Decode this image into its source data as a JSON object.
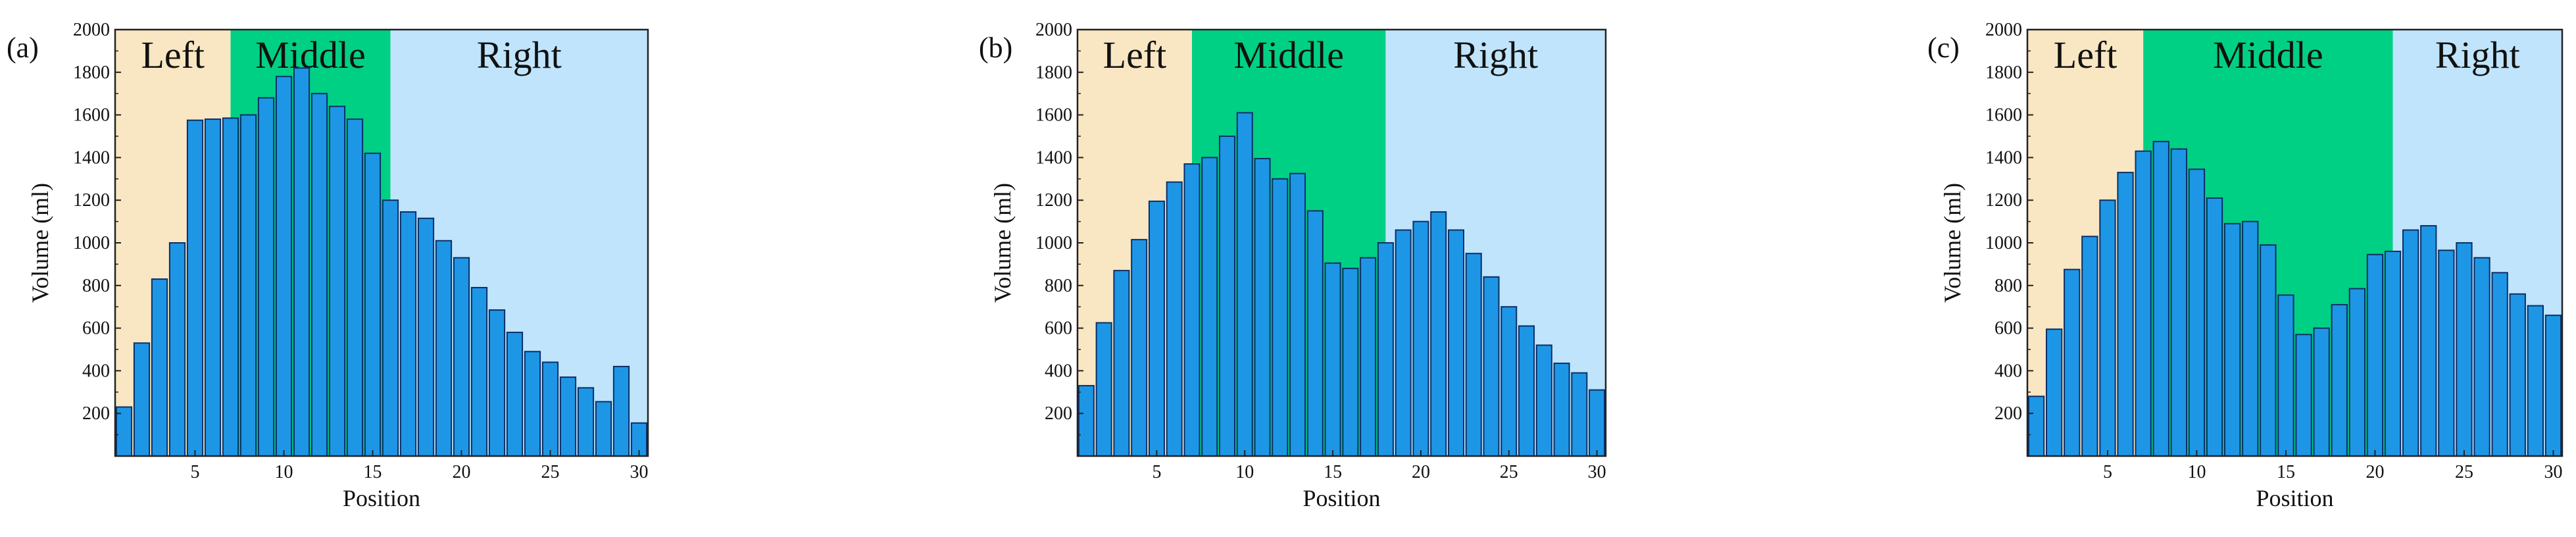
{
  "colors": {
    "left_region": "#f9e6c3",
    "middle_region": "#00d084",
    "right_region": "#bfe4fb",
    "bar_fill": "#1e96e6",
    "bar_stroke": "#0b2f66"
  },
  "chart_data": [
    {
      "type": "bar",
      "panel_label": "(a)",
      "xlabel": "Position",
      "ylabel": "Volume (ml)",
      "xlim": [
        0.5,
        30.5
      ],
      "ylim": [
        0,
        2000
      ],
      "x_ticks": [
        5,
        10,
        15,
        20,
        25,
        30
      ],
      "y_ticks": [
        200,
        400,
        600,
        800,
        1000,
        1200,
        1400,
        1600,
        1800,
        2000
      ],
      "regions": [
        {
          "label": "Left",
          "from": 0.5,
          "to": 7,
          "color": "left_region"
        },
        {
          "label": "Middle",
          "from": 7,
          "to": 16,
          "color": "middle_region"
        },
        {
          "label": "Right",
          "from": 16,
          "to": 30.5,
          "color": "right_region"
        }
      ],
      "categories": [
        1,
        2,
        3,
        4,
        5,
        6,
        7,
        8,
        9,
        10,
        11,
        12,
        13,
        14,
        15,
        16,
        17,
        18,
        19,
        20,
        21,
        22,
        23,
        24,
        25,
        26,
        27,
        28,
        29,
        30
      ],
      "values": [
        230,
        530,
        830,
        1000,
        1575,
        1580,
        1585,
        1600,
        1680,
        1780,
        1820,
        1700,
        1640,
        1580,
        1420,
        1200,
        1145,
        1115,
        1010,
        930,
        790,
        685,
        580,
        490,
        440,
        370,
        320,
        255,
        420,
        155
      ]
    },
    {
      "type": "bar",
      "panel_label": "(b)",
      "xlabel": "Position",
      "ylabel": "Volume (ml)",
      "xlim": [
        0.5,
        30.5
      ],
      "ylim": [
        0,
        2000
      ],
      "x_ticks": [
        5,
        10,
        15,
        20,
        25,
        30
      ],
      "y_ticks": [
        200,
        400,
        600,
        800,
        1000,
        1200,
        1400,
        1600,
        1800,
        2000
      ],
      "regions": [
        {
          "label": "Left",
          "from": 0.5,
          "to": 7,
          "color": "left_region"
        },
        {
          "label": "Middle",
          "from": 7,
          "to": 18,
          "color": "middle_region"
        },
        {
          "label": "Right",
          "from": 18,
          "to": 30.5,
          "color": "right_region"
        }
      ],
      "categories": [
        1,
        2,
        3,
        4,
        5,
        6,
        7,
        8,
        9,
        10,
        11,
        12,
        13,
        14,
        15,
        16,
        17,
        18,
        19,
        20,
        21,
        22,
        23,
        24,
        25,
        26,
        27,
        28,
        29,
        30
      ],
      "values": [
        330,
        625,
        870,
        1015,
        1195,
        1285,
        1370,
        1400,
        1500,
        1610,
        1395,
        1300,
        1325,
        1150,
        905,
        880,
        930,
        1000,
        1060,
        1100,
        1145,
        1060,
        950,
        840,
        700,
        610,
        520,
        435,
        390,
        310
      ]
    },
    {
      "type": "bar",
      "panel_label": "(c)",
      "xlabel": "Position",
      "ylabel": "Volume (ml)",
      "xlim": [
        0.5,
        30.5
      ],
      "ylim": [
        0,
        2000
      ],
      "x_ticks": [
        5,
        10,
        15,
        20,
        25,
        30
      ],
      "y_ticks": [
        200,
        400,
        600,
        800,
        1000,
        1200,
        1400,
        1600,
        1800,
        2000
      ],
      "regions": [
        {
          "label": "Left",
          "from": 0.5,
          "to": 7,
          "color": "left_region"
        },
        {
          "label": "Middle",
          "from": 7,
          "to": 21,
          "color": "middle_region"
        },
        {
          "label": "Right",
          "from": 21,
          "to": 30.5,
          "color": "right_region"
        }
      ],
      "categories": [
        1,
        2,
        3,
        4,
        5,
        6,
        7,
        8,
        9,
        10,
        11,
        12,
        13,
        14,
        15,
        16,
        17,
        18,
        19,
        20,
        21,
        22,
        23,
        24,
        25,
        26,
        27,
        28,
        29,
        30
      ],
      "values": [
        280,
        595,
        875,
        1030,
        1200,
        1330,
        1430,
        1475,
        1440,
        1345,
        1210,
        1090,
        1100,
        990,
        755,
        570,
        600,
        710,
        785,
        945,
        960,
        1060,
        1080,
        965,
        1000,
        930,
        860,
        760,
        705,
        660
      ]
    }
  ]
}
